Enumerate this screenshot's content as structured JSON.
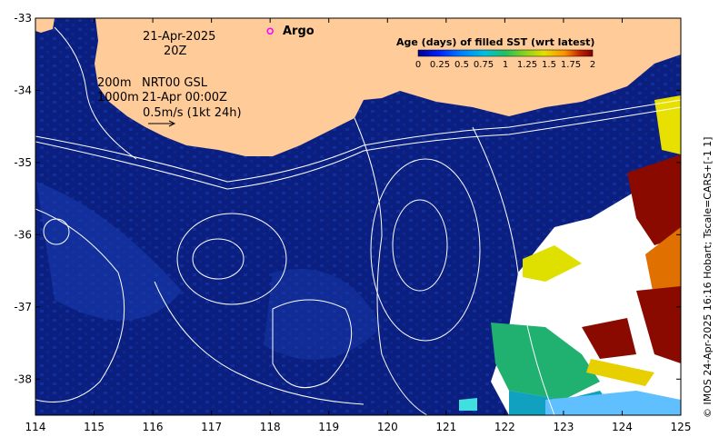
{
  "map": {
    "date_line1": "21-Apr-2025",
    "date_line2": "20Z",
    "isobath_label_200": "200m",
    "isobath_label_1000": "1000m",
    "product_label": "NRT00 GSL",
    "product_time": "21-Apr 00:00Z",
    "vector_scale_label": "0.5m/s (1kt 24h)",
    "legend_argo": "Argo",
    "credit": "© IMOS 24-Apr-2025 16:16 Hobart; Tscale=CARS+[-1 1]",
    "colors": {
      "ocean_base": "#0a1f80",
      "land": "#ffcc99",
      "argo_marker": "#ff00ff",
      "contour": "#ffffff"
    },
    "x_axis": {
      "min": 114,
      "max": 125,
      "ticks": [
        "114",
        "115",
        "116",
        "117",
        "118",
        "119",
        "120",
        "121",
        "122",
        "123",
        "124",
        "125"
      ]
    },
    "y_axis": {
      "min": -38.5,
      "max": -33,
      "ticks": [
        "-33",
        "-34",
        "-35",
        "-36",
        "-37",
        "-38"
      ]
    },
    "colorbar": {
      "title": "Age (days) of filled SST (wrt latest)",
      "range": [
        0,
        2
      ],
      "tick_labels": [
        "0",
        "0.25",
        "0.5",
        "0.75",
        "1",
        "1.25",
        "1.5",
        "1.75",
        "2"
      ],
      "colors": [
        "#00008f",
        "#0020ff",
        "#0080ff",
        "#00c0e0",
        "#20c060",
        "#80d020",
        "#e0e000",
        "#ff9000",
        "#c02000",
        "#800000"
      ]
    },
    "argo_float": {
      "lon": 118.0,
      "lat": -33.18
    }
  }
}
